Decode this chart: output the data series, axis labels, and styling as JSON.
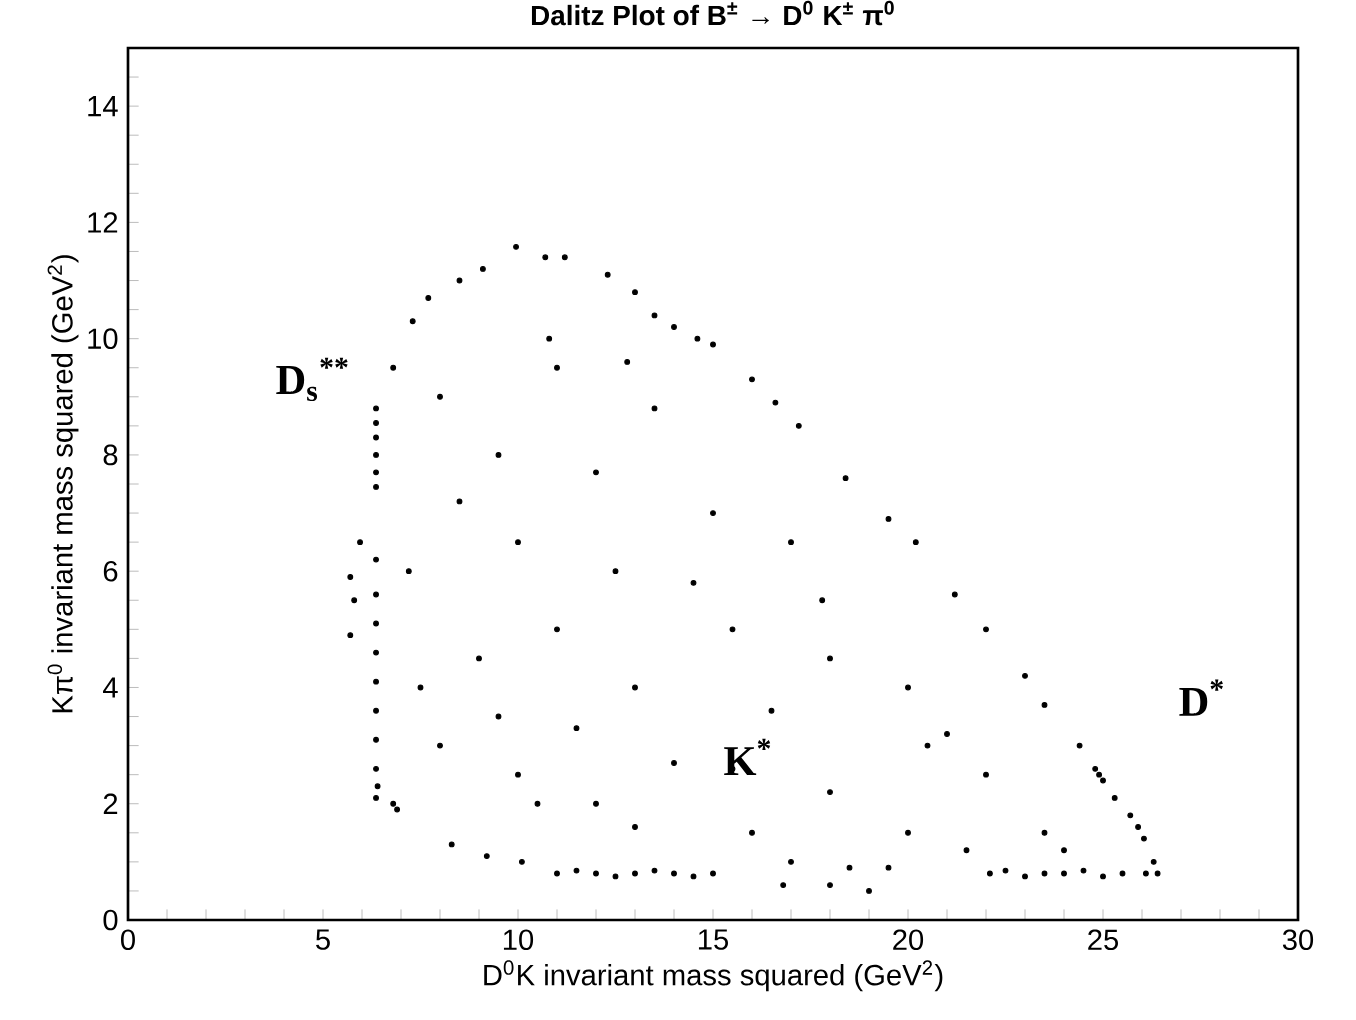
{
  "chart_data": {
    "type": "scatter",
    "title": "Dalitz Plot of B$^{±}$ → D$^{0}$ K$^{±}$ π$^{0}$",
    "xlabel": "D$^{0}$K invariant mass squared (GeV$^{2}$)",
    "ylabel": "Kπ$^{0}$ invariant mass squared (GeV$^{2}$)",
    "xlim": [
      0,
      30
    ],
    "ylim": [
      0,
      15
    ],
    "xticks": [
      0,
      {
        "value": 1,
        "label": null
      },
      {
        "value": 2,
        "label": null
      },
      {
        "value": 3,
        "label": null
      },
      {
        "value": 4,
        "label": null
      },
      5,
      {
        "value": 6,
        "label": null
      },
      {
        "value": 7,
        "label": null
      },
      {
        "value": 8,
        "label": null
      },
      {
        "value": 9,
        "label": null
      },
      10,
      {
        "value": 11,
        "label": null
      },
      {
        "value": 12,
        "label": null
      },
      {
        "value": 13,
        "label": null
      },
      {
        "value": 14,
        "label": null
      },
      15,
      {
        "value": 16,
        "label": null
      },
      {
        "value": 17,
        "label": null
      },
      {
        "value": 18,
        "label": null
      },
      {
        "value": 19,
        "label": null
      },
      20,
      {
        "value": 21,
        "label": null
      },
      {
        "value": 22,
        "label": null
      },
      {
        "value": 23,
        "label": null
      },
      {
        "value": 24,
        "label": null
      },
      25,
      {
        "value": 26,
        "label": null
      },
      {
        "value": 27,
        "label": null
      },
      {
        "value": 28,
        "label": null
      },
      {
        "value": 29,
        "label": null
      },
      30
    ],
    "yticks": [
      0,
      {
        "value": 0.5,
        "label": null
      },
      {
        "value": 1,
        "label": null
      },
      {
        "value": 1.5,
        "label": null
      },
      2,
      {
        "value": 2.5,
        "label": null
      },
      {
        "value": 3,
        "label": null
      },
      {
        "value": 3.5,
        "label": null
      },
      4,
      {
        "value": 4.5,
        "label": null
      },
      {
        "value": 5,
        "label": null
      },
      {
        "value": 5.5,
        "label": null
      },
      6,
      {
        "value": 6.5,
        "label": null
      },
      {
        "value": 7,
        "label": null
      },
      {
        "value": 7.5,
        "label": null
      },
      8,
      {
        "value": 8.5,
        "label": null
      },
      {
        "value": 9,
        "label": null
      },
      {
        "value": 9.5,
        "label": null
      },
      10,
      {
        "value": 10.5,
        "label": null
      },
      {
        "value": 11,
        "label": null
      },
      {
        "value": 11.5,
        "label": null
      },
      12,
      {
        "value": 12.5,
        "label": null
      },
      {
        "value": 13,
        "label": null
      },
      {
        "value": 13.5,
        "label": null
      },
      14,
      {
        "value": 14.5,
        "label": null
      }
    ],
    "grid": false,
    "annotations": [
      "D$_{s}$$^{**}$",
      "K$^{*}$",
      "D$^{*}$"
    ],
    "series": [
      {
        "color": "#000000",
        "x": [
          9.95,
          10.7,
          11.2,
          7.7,
          9.1,
          8.5,
          12.3,
          13.0,
          13.5,
          14.0,
          14.6,
          15.0,
          16.0,
          16.6,
          17.2,
          18.4,
          19.5,
          20.2,
          21.2,
          22.0,
          23.0,
          23.5,
          24.4,
          24.9,
          24.8,
          25.0,
          25.3,
          25.7,
          25.9,
          26.05,
          26.3,
          26.4,
          26.1,
          25.5,
          25.0,
          24.5,
          24.0,
          23.5,
          23.0,
          22.5,
          22.1,
          15.0,
          14.5,
          14.0,
          13.5,
          13.0,
          12.5,
          12.0,
          11.5,
          11.0,
          10.1,
          9.2,
          8.3,
          6.9,
          6.8,
          6.4,
          6.36,
          6.36,
          6.36,
          6.36,
          6.36,
          6.36,
          6.36,
          6.36,
          6.36,
          6.36,
          6.36,
          6.36,
          6.36,
          6.36,
          6.36,
          5.7,
          5.8,
          5.7,
          5.95,
          6.8,
          7.3,
          8.0,
          9.5,
          11.0,
          12.0,
          13.5,
          10.0,
          12.5,
          15.0,
          17.0,
          9.0,
          11.0,
          13.0,
          15.5,
          18.0,
          20.0,
          8.0,
          10.0,
          12.0,
          14.0,
          16.0,
          18.0,
          20.0,
          22.0,
          23.5,
          19.0,
          18.0,
          17.0,
          20.5,
          21.5,
          16.5,
          14.5,
          11.5,
          9.5,
          7.5,
          8.5,
          10.5,
          13.0,
          15.5,
          18.5,
          21.0,
          24.0,
          7.2,
          12.8,
          17.8,
          19.5,
          16.8,
          10.8
        ],
        "values": [
          11.58,
          11.4,
          11.4,
          10.7,
          11.2,
          11.0,
          11.1,
          10.8,
          10.4,
          10.2,
          10.0,
          9.9,
          9.3,
          8.9,
          8.5,
          7.6,
          6.9,
          6.5,
          5.6,
          5.0,
          4.2,
          3.7,
          3.0,
          2.5,
          2.6,
          2.4,
          2.1,
          1.8,
          1.6,
          1.4,
          1.0,
          0.8,
          0.8,
          0.8,
          0.75,
          0.85,
          0.8,
          0.8,
          0.75,
          0.85,
          0.8,
          0.8,
          0.75,
          0.8,
          0.85,
          0.8,
          0.75,
          0.8,
          0.85,
          0.8,
          1.0,
          1.1,
          1.3,
          1.9,
          2.0,
          2.3,
          2.1,
          2.6,
          3.1,
          3.6,
          4.1,
          4.6,
          5.1,
          5.6,
          6.2,
          7.45,
          7.7,
          8.0,
          8.3,
          8.55,
          8.8,
          5.9,
          5.5,
          4.9,
          6.5,
          9.5,
          10.3,
          9.0,
          8.0,
          9.5,
          7.7,
          8.8,
          6.5,
          6.0,
          7.0,
          6.5,
          4.5,
          5.0,
          4.0,
          5.0,
          4.5,
          4.0,
          3.0,
          2.5,
          2.0,
          2.7,
          1.5,
          2.2,
          1.5,
          2.5,
          1.5,
          0.5,
          0.6,
          1.0,
          3.0,
          1.2,
          3.6,
          5.8,
          3.3,
          3.5,
          4.0,
          7.2,
          2.0,
          1.6,
          2.6,
          0.9,
          3.2,
          1.2,
          6.0,
          9.6,
          5.5,
          0.9,
          0.6,
          10.0
        ]
      }
    ]
  }
}
